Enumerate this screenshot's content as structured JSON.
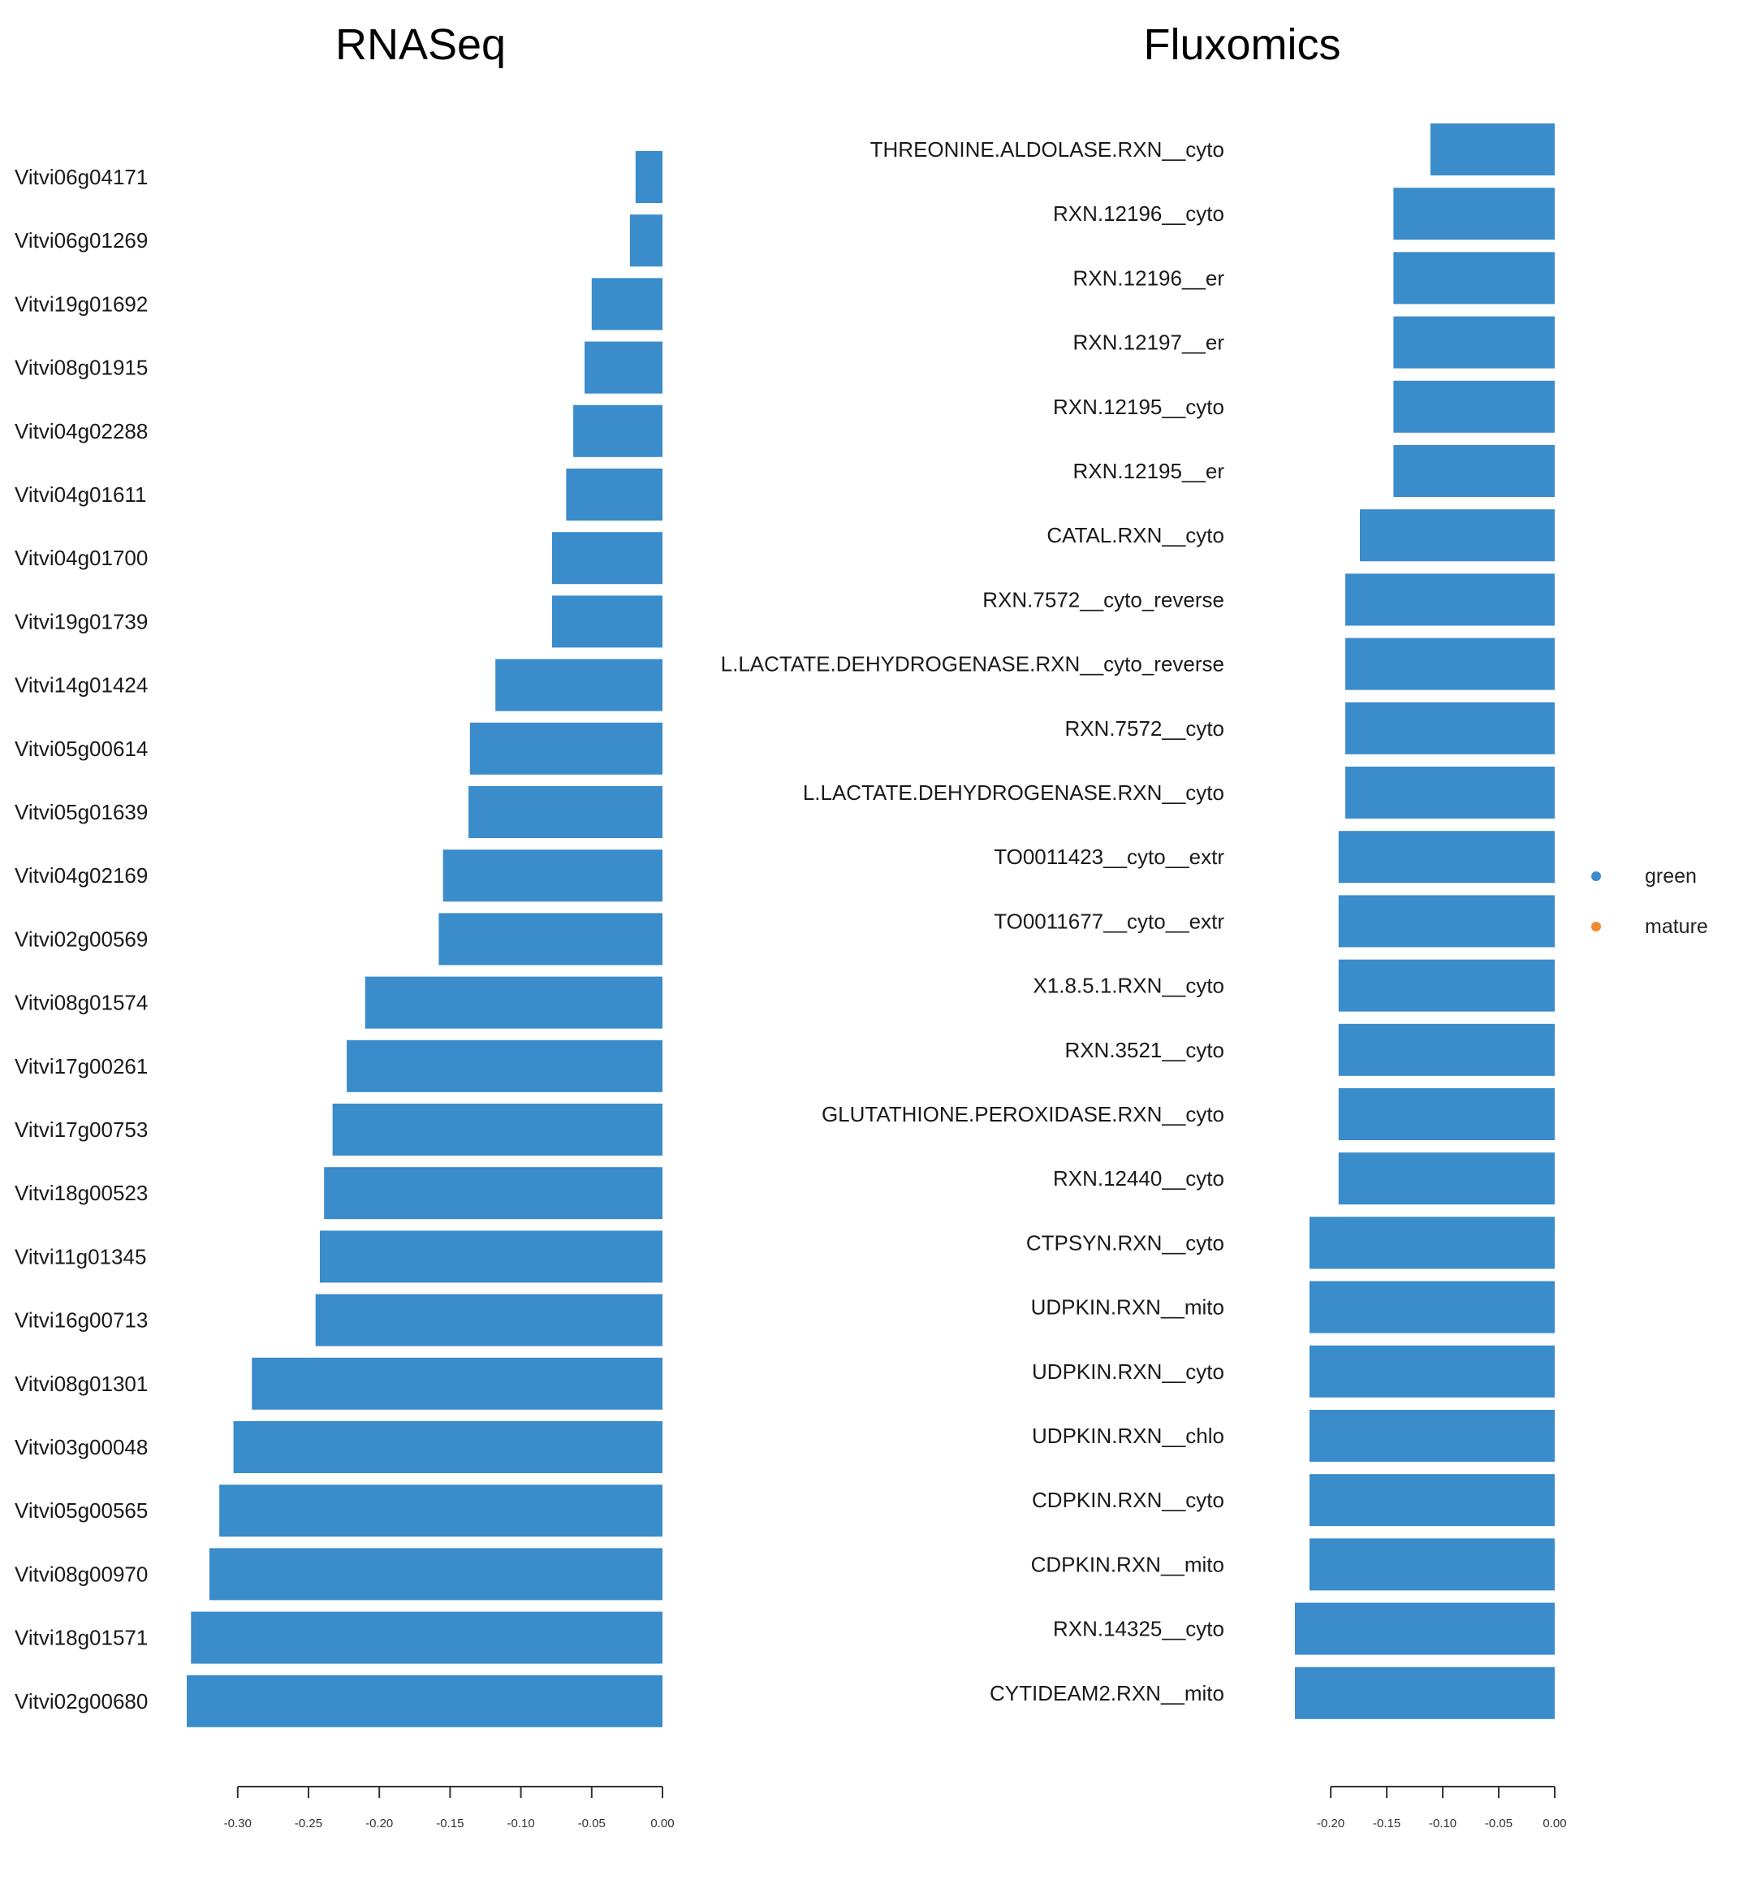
{
  "colors": {
    "bar": "#3a8ccb",
    "legend_green": "#3a8ccb",
    "legend_mature": "#f08a32"
  },
  "chart_data": [
    {
      "type": "bar",
      "orientation": "horizontal",
      "title": "RNASeq",
      "categories": [
        "Vitvi06g04171",
        "Vitvi06g01269",
        "Vitvi19g01692",
        "Vitvi08g01915",
        "Vitvi04g02288",
        "Vitvi04g01611",
        "Vitvi04g01700",
        "Vitvi19g01739",
        "Vitvi14g01424",
        "Vitvi05g00614",
        "Vitvi05g01639",
        "Vitvi04g02169",
        "Vitvi02g00569",
        "Vitvi08g01574",
        "Vitvi17g00261",
        "Vitvi17g00753",
        "Vitvi18g00523",
        "Vitvi11g01345",
        "Vitvi16g00713",
        "Vitvi08g01301",
        "Vitvi03g00048",
        "Vitvi05g00565",
        "Vitvi08g00970",
        "Vitvi18g01571",
        "Vitvi02g00680"
      ],
      "values": [
        -0.019,
        -0.023,
        -0.05,
        -0.055,
        -0.063,
        -0.068,
        -0.078,
        -0.078,
        -0.118,
        -0.136,
        -0.137,
        -0.155,
        -0.158,
        -0.21,
        -0.223,
        -0.233,
        -0.239,
        -0.242,
        -0.245,
        -0.29,
        -0.303,
        -0.313,
        -0.32,
        -0.333,
        -0.336
      ],
      "xlim": [
        -0.336,
        0.0
      ],
      "xticks": [
        -0.3,
        -0.25,
        -0.2,
        -0.15,
        -0.1,
        -0.05,
        0.0
      ],
      "xtick_labels": [
        "-0.30",
        "-0.25",
        "-0.20",
        "-0.15",
        "-0.10",
        "-0.05",
        "0.00"
      ]
    },
    {
      "type": "bar",
      "orientation": "horizontal",
      "title": "Fluxomics",
      "categories": [
        "THREONINE.ALDOLASE.RXN__cyto",
        "RXN.12196__cyto",
        "RXN.12196__er",
        "RXN.12197__er",
        "RXN.12195__cyto",
        "RXN.12195__er",
        "CATAL.RXN__cyto",
        "RXN.7572__cyto_reverse",
        "L.LACTATE.DEHYDROGENASE.RXN__cyto_reverse",
        "RXN.7572__cyto",
        "L.LACTATE.DEHYDROGENASE.RXN__cyto",
        "TO0011423__cyto__extr",
        "TO0011677__cyto__extr",
        "X1.8.5.1.RXN__cyto",
        "RXN.3521__cyto",
        "GLUTATHIONE.PEROXIDASE.RXN__cyto",
        "RXN.12440__cyto",
        "CTPSYN.RXN__cyto",
        "UDPKIN.RXN__mito",
        "UDPKIN.RXN__cyto",
        "UDPKIN.RXN__chlo",
        "CDPKIN.RXN__cyto",
        "CDPKIN.RXN__mito",
        "RXN.14325__cyto",
        "CYTIDEAM2.RXN__mito"
      ],
      "values": [
        -0.111,
        -0.144,
        -0.144,
        -0.144,
        -0.144,
        -0.144,
        -0.174,
        -0.187,
        -0.187,
        -0.187,
        -0.187,
        -0.193,
        -0.193,
        -0.193,
        -0.193,
        -0.193,
        -0.193,
        -0.219,
        -0.219,
        -0.219,
        -0.219,
        -0.219,
        -0.219,
        -0.232,
        -0.232
      ],
      "xlim": [
        -0.232,
        0.0
      ],
      "xticks": [
        -0.2,
        -0.15,
        -0.1,
        -0.05,
        0.0
      ],
      "xtick_labels": [
        "-0.20",
        "-0.15",
        "-0.10",
        "-0.05",
        "0.00"
      ],
      "legend": {
        "placement": "right",
        "entries": [
          "green",
          "mature"
        ]
      }
    }
  ]
}
